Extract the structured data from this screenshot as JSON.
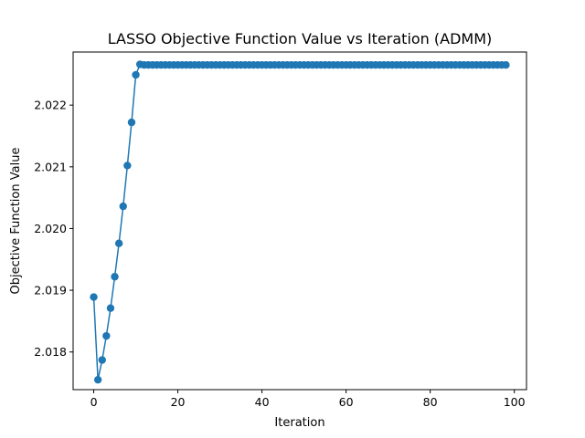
{
  "chart_data": {
    "type": "line",
    "title": "LASSO Objective Function Value vs Iteration (ADMM)",
    "xlabel": "Iteration",
    "ylabel": "Objective Function Value",
    "xlim": [
      -4.9,
      102.9
    ],
    "ylim": [
      2.01739,
      2.02286
    ],
    "xticks": [
      0,
      20,
      40,
      60,
      80,
      100
    ],
    "yticks": [
      2.018,
      2.019,
      2.02,
      2.021,
      2.022
    ],
    "xtick_labels": [
      "0",
      "20",
      "40",
      "60",
      "80",
      "100"
    ],
    "ytick_labels": [
      "2.018",
      "2.019",
      "2.020",
      "2.021",
      "2.022"
    ],
    "grid": false,
    "series": [
      {
        "color": "#1f77b4",
        "marker": "circle",
        "x": [
          0,
          1,
          2,
          3,
          4,
          5,
          6,
          7,
          8,
          9,
          10,
          11,
          12,
          13,
          14,
          15,
          16,
          17,
          18,
          19,
          20,
          21,
          22,
          23,
          24,
          25,
          26,
          27,
          28,
          29,
          30,
          31,
          32,
          33,
          34,
          35,
          36,
          37,
          38,
          39,
          40,
          41,
          42,
          43,
          44,
          45,
          46,
          47,
          48,
          49,
          50,
          51,
          52,
          53,
          54,
          55,
          56,
          57,
          58,
          59,
          60,
          61,
          62,
          63,
          64,
          65,
          66,
          67,
          68,
          69,
          70,
          71,
          72,
          73,
          74,
          75,
          76,
          77,
          78,
          79,
          80,
          81,
          82,
          83,
          84,
          85,
          86,
          87,
          88,
          89,
          90,
          91,
          92,
          93,
          94,
          95,
          96,
          97,
          98
        ],
        "y": [
          2.01889,
          2.01755,
          2.01787,
          2.01826,
          2.01871,
          2.01922,
          2.01976,
          2.02036,
          2.02102,
          2.02172,
          2.02249,
          2.02266,
          2.02265,
          2.02265,
          2.02265,
          2.02265,
          2.02265,
          2.02265,
          2.02265,
          2.02265,
          2.02265,
          2.02265,
          2.02265,
          2.02265,
          2.02265,
          2.02265,
          2.02265,
          2.02265,
          2.02265,
          2.02265,
          2.02265,
          2.02265,
          2.02265,
          2.02265,
          2.02265,
          2.02265,
          2.02265,
          2.02265,
          2.02265,
          2.02265,
          2.02265,
          2.02265,
          2.02265,
          2.02265,
          2.02265,
          2.02265,
          2.02265,
          2.02265,
          2.02265,
          2.02265,
          2.02265,
          2.02265,
          2.02265,
          2.02265,
          2.02265,
          2.02265,
          2.02265,
          2.02265,
          2.02265,
          2.02265,
          2.02265,
          2.02265,
          2.02265,
          2.02265,
          2.02265,
          2.02265,
          2.02265,
          2.02265,
          2.02265,
          2.02265,
          2.02265,
          2.02265,
          2.02265,
          2.02265,
          2.02265,
          2.02265,
          2.02265,
          2.02265,
          2.02265,
          2.02265,
          2.02265,
          2.02265,
          2.02265,
          2.02265,
          2.02265,
          2.02265,
          2.02265,
          2.02265,
          2.02265,
          2.02265,
          2.02265,
          2.02265,
          2.02265,
          2.02265,
          2.02265,
          2.02265,
          2.02265,
          2.02265,
          2.02265
        ]
      }
    ]
  }
}
